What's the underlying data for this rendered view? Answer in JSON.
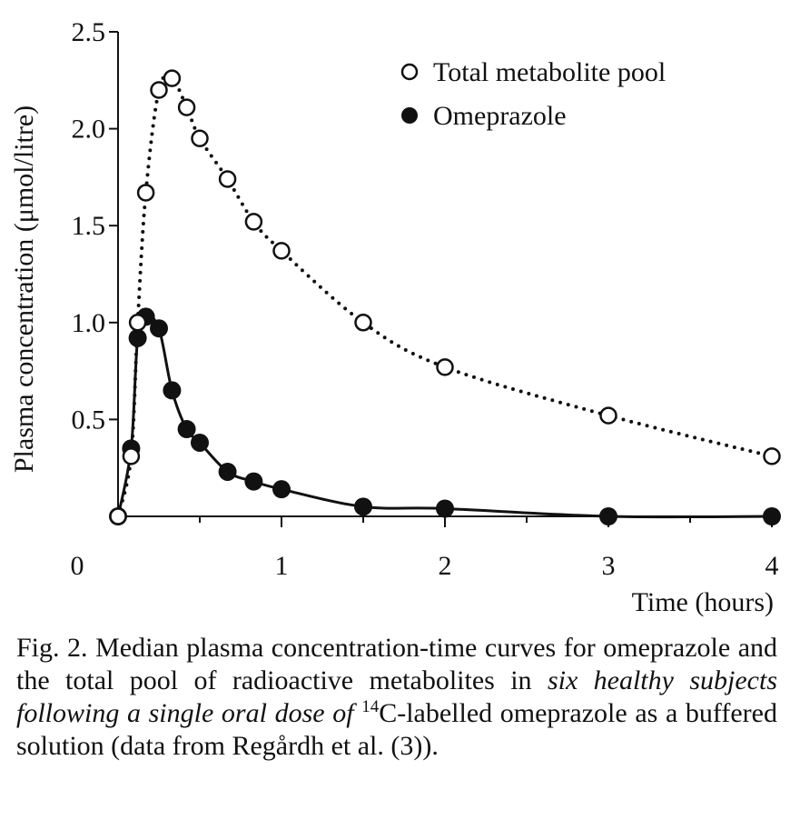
{
  "chart_data": {
    "type": "line",
    "title": "",
    "xlabel": "Time (hours)",
    "ylabel": "Plasma concentration (μmol/litre)",
    "xlim": [
      0,
      4
    ],
    "ylim": [
      0,
      2.5
    ],
    "x_ticks": [
      {
        "value": 0,
        "label": "0"
      },
      {
        "value": 1,
        "label": "1"
      },
      {
        "value": 2,
        "label": "2"
      },
      {
        "value": 3,
        "label": "3"
      },
      {
        "value": 4,
        "label": "4"
      }
    ],
    "y_ticks": [
      {
        "value": 0.5,
        "label": "0.5"
      },
      {
        "value": 1.0,
        "label": "1.0"
      },
      {
        "value": 1.5,
        "label": "1.5"
      },
      {
        "value": 2.0,
        "label": "2.0"
      },
      {
        "value": 2.5,
        "label": "2.5"
      }
    ],
    "x_minor_ticks": [
      0.5,
      1.5,
      2.5,
      3.5
    ],
    "grid": false,
    "legend_position": "top-right",
    "series": [
      {
        "name": "Total metabolite pool",
        "marker": "open-circle",
        "line": "dotted",
        "color": "#111111",
        "points": [
          {
            "x": 0,
            "y": 0.0
          },
          {
            "x": 0.08,
            "y": 0.31
          },
          {
            "x": 0.12,
            "y": 1.0
          },
          {
            "x": 0.17,
            "y": 1.67
          },
          {
            "x": 0.25,
            "y": 2.2
          },
          {
            "x": 0.33,
            "y": 2.26
          },
          {
            "x": 0.42,
            "y": 2.11
          },
          {
            "x": 0.5,
            "y": 1.95
          },
          {
            "x": 0.67,
            "y": 1.74
          },
          {
            "x": 0.83,
            "y": 1.52
          },
          {
            "x": 1.0,
            "y": 1.37
          },
          {
            "x": 1.5,
            "y": 1.0
          },
          {
            "x": 2.0,
            "y": 0.77
          },
          {
            "x": 3.0,
            "y": 0.52
          },
          {
            "x": 4.0,
            "y": 0.31
          }
        ]
      },
      {
        "name": "Omeprazole",
        "marker": "filled-circle",
        "line": "solid",
        "color": "#111111",
        "points": [
          {
            "x": 0,
            "y": 0.0
          },
          {
            "x": 0.08,
            "y": 0.35
          },
          {
            "x": 0.12,
            "y": 0.92
          },
          {
            "x": 0.17,
            "y": 1.03
          },
          {
            "x": 0.25,
            "y": 0.97
          },
          {
            "x": 0.33,
            "y": 0.65
          },
          {
            "x": 0.42,
            "y": 0.45
          },
          {
            "x": 0.5,
            "y": 0.38
          },
          {
            "x": 0.67,
            "y": 0.23
          },
          {
            "x": 0.83,
            "y": 0.18
          },
          {
            "x": 1.0,
            "y": 0.14
          },
          {
            "x": 1.5,
            "y": 0.05
          },
          {
            "x": 2.0,
            "y": 0.04
          },
          {
            "x": 3.0,
            "y": 0.0
          },
          {
            "x": 4.0,
            "y": 0.0
          }
        ]
      }
    ]
  },
  "caption": {
    "fig_label": "Fig. 2.",
    "text_1": "Median plasma concentration-time curves for omeprazole and the total pool of radioactive metabolites in ",
    "text_italic": "six healthy subjects following a single oral dose of",
    "text_2": " ",
    "superscript": "14",
    "text_3": "C-labelled omeprazole as a buffered solution (data from Regårdh et al. (3))."
  }
}
